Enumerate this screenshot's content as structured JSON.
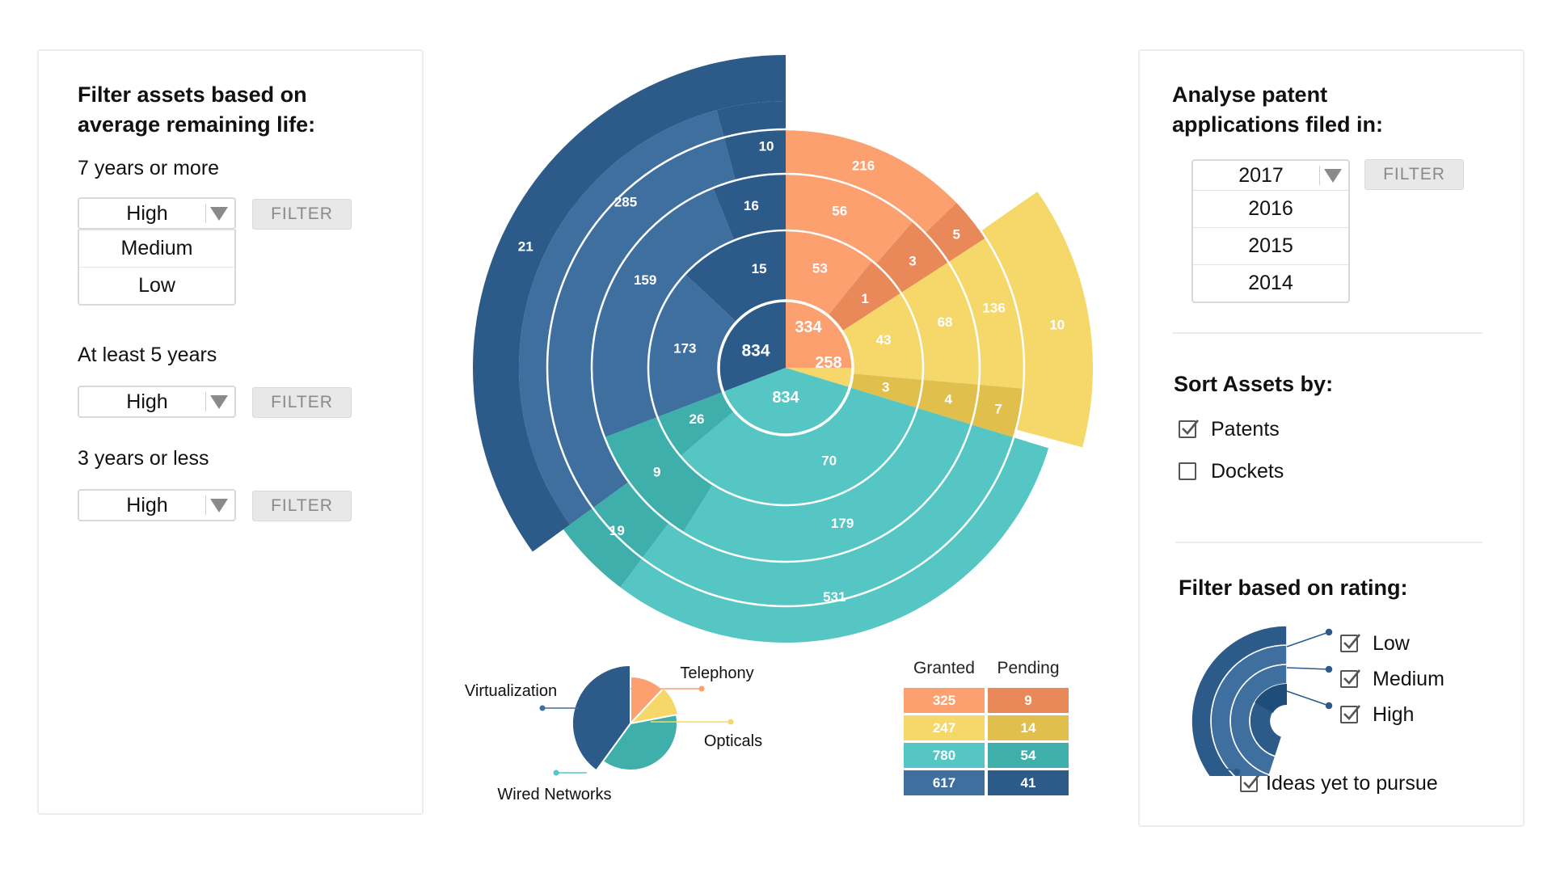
{
  "left_panel": {
    "title": "Filter assets based on average remaining life:",
    "title_line1": "Filter assets based on",
    "title_line2": "average remaining life:",
    "groups": [
      {
        "label": "7 years or more",
        "selected": "High",
        "options": [
          "Medium",
          "Low"
        ],
        "button": "FILTER"
      },
      {
        "label": "At least 5 years",
        "selected": "High",
        "button": "FILTER"
      },
      {
        "label": "3 years or less",
        "selected": "High",
        "button": "FILTER"
      }
    ]
  },
  "right_panel": {
    "patent_title_line1": "Analyse patent",
    "patent_title_line2": "applications filed in:",
    "year_selected": "2017",
    "year_options": [
      "2016",
      "2015",
      "2014"
    ],
    "year_button": "FILTER",
    "sort_title": "Sort Assets by:",
    "sort_options": [
      {
        "label": "Patents",
        "checked": true
      },
      {
        "label": "Dockets",
        "checked": false
      }
    ],
    "rating_title": "Filter based on rating:",
    "rating_options": [
      {
        "label": "Low",
        "checked": true
      },
      {
        "label": "Medium",
        "checked": true
      },
      {
        "label": "High",
        "checked": true
      },
      {
        "label": "Ideas yet to pursue",
        "checked": true
      }
    ]
  },
  "colors": {
    "telephony": "#fca070",
    "telephony_dark": "#e98858",
    "optical": "#f5d76a",
    "optical_dark": "#e0bf4c",
    "wired": "#55c6c4",
    "wired_dark": "#3fafac",
    "virtual": "#3f6f9f",
    "virtual_dark": "#2c5a89"
  },
  "chart_data": [
    {
      "type": "sunburst",
      "center_value": "834",
      "sectors": [
        {
          "name": "Telephony",
          "total": "334",
          "ring1": [
            "53",
            "1"
          ],
          "ring2": [
            "56",
            "3"
          ],
          "ring3": [
            "216",
            "5"
          ]
        },
        {
          "name": "Opticals",
          "total": "258",
          "ring1": [
            "43",
            "3"
          ],
          "ring2": [
            "68",
            "4"
          ],
          "ring3": [
            "136",
            "7"
          ],
          "outer": "10"
        },
        {
          "name": "Wired Networks",
          "total": "834",
          "ring1": [
            "70",
            "26"
          ],
          "ring2": [
            "179",
            "9"
          ],
          "ring3": [
            "531",
            "19"
          ]
        },
        {
          "name": "Virtualization",
          "total": "834",
          "ring1": [
            "173",
            "15"
          ],
          "ring2": [
            "159",
            "16"
          ],
          "ring3": [
            "285",
            "10"
          ],
          "outer": "21"
        }
      ]
    },
    {
      "type": "pie",
      "labels": [
        "Telephony",
        "Opticals",
        "Wired Networks",
        "Virtualization"
      ],
      "values": [
        12,
        10,
        38,
        40
      ]
    },
    {
      "type": "table",
      "columns": [
        "Granted",
        "Pending"
      ],
      "rows": [
        [
          "325",
          "9"
        ],
        [
          "247",
          "14"
        ],
        [
          "780",
          "54"
        ],
        [
          "617",
          "41"
        ]
      ]
    }
  ]
}
